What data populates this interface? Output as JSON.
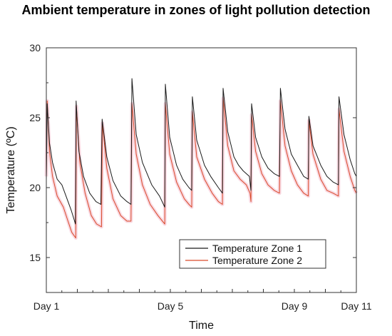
{
  "chart_data": {
    "type": "line",
    "title": "Ambient temperature in zones of light pollution detection",
    "xlabel": "Time",
    "ylabel": "Temperature (ºC)",
    "xlim": [
      1,
      11
    ],
    "ylim": [
      12.5,
      30
    ],
    "x_ticks": [
      {
        "value": 1,
        "label": "Day 1"
      },
      {
        "value": 5,
        "label": "Day 5"
      },
      {
        "value": 9,
        "label": "Day 9"
      },
      {
        "value": 11,
        "label": "Day 11"
      }
    ],
    "y_ticks": [
      15,
      20,
      25,
      30
    ],
    "grid": false,
    "legend_position": "bottom-right",
    "colors": {
      "zone1": "#1a1a1a",
      "zone2": "#d94a2a",
      "zone2_glow": "#f6c9d6",
      "axis": "#333333"
    },
    "series": [
      {
        "name": "Temperature Zone 1",
        "color": "#1a1a1a",
        "points": [
          [
            1.0,
            20.5
          ],
          [
            1.03,
            26.0
          ],
          [
            1.1,
            23.2
          ],
          [
            1.2,
            21.8
          ],
          [
            1.35,
            20.6
          ],
          [
            1.5,
            20.2
          ],
          [
            1.65,
            19.3
          ],
          [
            1.8,
            18.4
          ],
          [
            1.94,
            17.4
          ],
          [
            1.96,
            26.2
          ],
          [
            2.05,
            22.6
          ],
          [
            2.2,
            20.8
          ],
          [
            2.4,
            19.6
          ],
          [
            2.6,
            19.0
          ],
          [
            2.76,
            18.8
          ],
          [
            2.8,
            24.9
          ],
          [
            2.95,
            22.2
          ],
          [
            3.15,
            20.5
          ],
          [
            3.4,
            19.4
          ],
          [
            3.6,
            19.0
          ],
          [
            3.73,
            18.8
          ],
          [
            3.76,
            27.8
          ],
          [
            3.9,
            23.8
          ],
          [
            4.1,
            21.8
          ],
          [
            4.4,
            20.2
          ],
          [
            4.65,
            19.4
          ],
          [
            4.82,
            18.6
          ],
          [
            4.84,
            27.4
          ],
          [
            4.98,
            23.6
          ],
          [
            5.2,
            21.6
          ],
          [
            5.4,
            20.6
          ],
          [
            5.6,
            20.0
          ],
          [
            5.69,
            19.8
          ],
          [
            5.71,
            26.5
          ],
          [
            5.85,
            23.4
          ],
          [
            6.1,
            21.6
          ],
          [
            6.3,
            20.8
          ],
          [
            6.55,
            20.0
          ],
          [
            6.68,
            19.6
          ],
          [
            6.7,
            27.1
          ],
          [
            6.85,
            24.0
          ],
          [
            7.05,
            22.2
          ],
          [
            7.2,
            21.6
          ],
          [
            7.35,
            21.2
          ],
          [
            7.55,
            20.8
          ],
          [
            7.6,
            19.8
          ],
          [
            7.62,
            26.0
          ],
          [
            7.75,
            23.6
          ],
          [
            7.95,
            22.2
          ],
          [
            8.15,
            21.4
          ],
          [
            8.35,
            21.0
          ],
          [
            8.52,
            20.8
          ],
          [
            8.55,
            27.1
          ],
          [
            8.7,
            24.2
          ],
          [
            8.9,
            22.4
          ],
          [
            9.1,
            21.6
          ],
          [
            9.3,
            20.8
          ],
          [
            9.45,
            20.6
          ],
          [
            9.47,
            25.1
          ],
          [
            9.6,
            23.0
          ],
          [
            9.85,
            21.6
          ],
          [
            10.05,
            20.8
          ],
          [
            10.25,
            20.4
          ],
          [
            10.42,
            20.2
          ],
          [
            10.44,
            26.5
          ],
          [
            10.6,
            23.8
          ],
          [
            10.8,
            22.0
          ],
          [
            10.95,
            21.0
          ],
          [
            11.0,
            20.8
          ]
        ]
      },
      {
        "name": "Temperature Zone 2",
        "color": "#d94a2a",
        "points": [
          [
            1.0,
            20.8
          ],
          [
            1.03,
            26.2
          ],
          [
            1.1,
            22.6
          ],
          [
            1.2,
            20.8
          ],
          [
            1.35,
            19.4
          ],
          [
            1.55,
            18.6
          ],
          [
            1.7,
            17.6
          ],
          [
            1.82,
            16.8
          ],
          [
            1.95,
            16.4
          ],
          [
            1.97,
            25.8
          ],
          [
            2.08,
            21.8
          ],
          [
            2.25,
            19.6
          ],
          [
            2.45,
            18.0
          ],
          [
            2.62,
            17.4
          ],
          [
            2.78,
            17.2
          ],
          [
            2.81,
            24.6
          ],
          [
            2.95,
            21.4
          ],
          [
            3.15,
            19.2
          ],
          [
            3.4,
            18.0
          ],
          [
            3.6,
            17.6
          ],
          [
            3.73,
            17.6
          ],
          [
            3.76,
            26.0
          ],
          [
            3.9,
            22.4
          ],
          [
            4.1,
            20.2
          ],
          [
            4.35,
            18.8
          ],
          [
            4.6,
            18.0
          ],
          [
            4.82,
            17.4
          ],
          [
            4.84,
            26.0
          ],
          [
            4.98,
            22.4
          ],
          [
            5.2,
            20.4
          ],
          [
            5.45,
            19.2
          ],
          [
            5.6,
            18.8
          ],
          [
            5.69,
            18.6
          ],
          [
            5.71,
            25.4
          ],
          [
            5.85,
            22.2
          ],
          [
            6.1,
            20.6
          ],
          [
            6.35,
            19.6
          ],
          [
            6.55,
            19.0
          ],
          [
            6.68,
            18.8
          ],
          [
            6.7,
            26.4
          ],
          [
            6.85,
            23.0
          ],
          [
            7.05,
            21.2
          ],
          [
            7.25,
            20.6
          ],
          [
            7.45,
            20.2
          ],
          [
            7.57,
            19.6
          ],
          [
            7.6,
            19.0
          ],
          [
            7.62,
            25.2
          ],
          [
            7.75,
            22.6
          ],
          [
            7.95,
            21.0
          ],
          [
            8.15,
            20.2
          ],
          [
            8.35,
            19.8
          ],
          [
            8.52,
            19.6
          ],
          [
            8.55,
            26.2
          ],
          [
            8.7,
            23.0
          ],
          [
            8.9,
            21.2
          ],
          [
            9.1,
            20.2
          ],
          [
            9.3,
            19.6
          ],
          [
            9.45,
            19.4
          ],
          [
            9.47,
            24.8
          ],
          [
            9.6,
            22.4
          ],
          [
            9.85,
            20.6
          ],
          [
            10.05,
            19.8
          ],
          [
            10.25,
            19.6
          ],
          [
            10.42,
            19.4
          ],
          [
            10.44,
            25.6
          ],
          [
            10.6,
            22.6
          ],
          [
            10.8,
            20.8
          ],
          [
            10.95,
            19.8
          ],
          [
            11.0,
            19.6
          ]
        ]
      }
    ]
  }
}
